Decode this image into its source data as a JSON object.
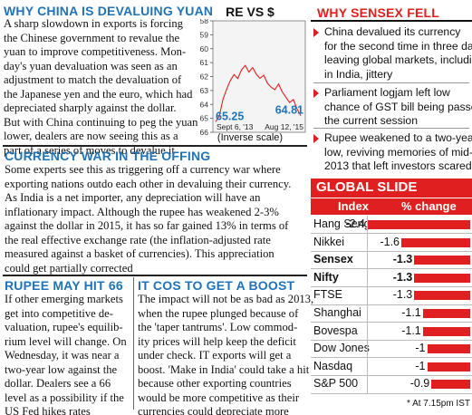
{
  "china": {
    "heading": "WHY CHINA IS DEVALUING YUAN",
    "lines": [
      "A sharp slowdown in exports is forcing",
      "the Chinese government to revalue the",
      "yuan to improve competitiveness. Mon-",
      "day's yuan devaluation was seen as an",
      "adjustment to match the devaluation of",
      "the Japanese yen and the euro, which had",
      "depreciated sharply against the dollar.",
      "But with China continuing to peg the yuan",
      "lower, dealers are now seeing this as a",
      "part of a series of moves to devalue it"
    ]
  },
  "chart": {
    "title": "RE VS $",
    "note": "(Inverse scale)"
  },
  "chart_data": {
    "type": "line",
    "title": "RE VS $",
    "xlabel": "",
    "ylabel": "",
    "ylim": [
      66,
      58
    ],
    "inverse_scale": true,
    "yticks": [
      58,
      59,
      60,
      61,
      62,
      63,
      64,
      65,
      66
    ],
    "x": [
      "Sept 6, '13",
      "Aug 12, '15"
    ],
    "series": [
      {
        "values": [
          65.25,
          64.81
        ]
      }
    ],
    "data_labels": [
      "65.25",
      "64.81"
    ],
    "line_color": "#e02020",
    "grid": false
  },
  "sensex": {
    "heading": "WHY SENSEX FELL",
    "items": [
      {
        "lines": [
          "China devalued its currency",
          "for the second time in three days,",
          "leaving global markets, including",
          "in India, jittery"
        ]
      },
      {
        "lines": [
          "Parliament logjam left low",
          "chance of GST bill being passed in",
          "the current session"
        ]
      },
      {
        "lines": [
          "Rupee weakened to a two-year",
          "low, reviving memories of mid-",
          "2013 that left investors scared"
        ]
      }
    ]
  },
  "currency": {
    "heading": "CURRENCY WAR IN THE OFFING",
    "lines": [
      "Some experts see this as triggering off a currency war where",
      "exporting nations outdo each other in devaluing their currency.",
      "As India is a net importer, any depreciation will have an",
      "inflationary impact. Although the rupee has weakened 2-3%",
      "against the dollar in 2015, it has so far gained 13% in terms of",
      "the real effective exchange rate (the inflation-adjusted rate",
      "measured against a basket of currencies). This appreciation",
      "could get partially corrected"
    ]
  },
  "rupee": {
    "heading": "RUPEE MAY HIT 66",
    "lines": [
      "If other emerging markets",
      "get into competitive de-",
      "valuation, rupee's equilib-",
      "rium level will change. On",
      "Wednesday, it was near a",
      "two-year low against the",
      "dollar. Dealers see a 66",
      "level as a possibility if the",
      "US Fed hikes rates"
    ]
  },
  "itcos": {
    "heading": "IT COS TO GET A BOOST",
    "lines": [
      "The impact will not be as bad as 2013,",
      "when the rupee plunged because of",
      "the 'taper tantrums'. Low commod-",
      "ity prices will help keep the deficit",
      "under check. IT exports will get a",
      "boost. 'Make in India' could take a hit",
      "because other exporting countries",
      "would be more competitive as their",
      "currencies could depreciate more"
    ]
  },
  "global": {
    "heading": "GLOBAL SLIDE",
    "col_index": "Index",
    "col_change": "% change",
    "rows": [
      {
        "name": "Hang Seng",
        "value": -2.4,
        "label": "-2.4",
        "bold": false
      },
      {
        "name": "Nikkei",
        "value": -1.6,
        "label": "-1.6",
        "bold": false
      },
      {
        "name": "Sensex",
        "value": -1.3,
        "label": "-1.3",
        "bold": true
      },
      {
        "name": "Nifty",
        "value": -1.3,
        "label": "-1.3",
        "bold": true
      },
      {
        "name": "FTSE",
        "value": -1.3,
        "label": "-1.3",
        "bold": false
      },
      {
        "name": "Shanghai",
        "value": -1.1,
        "label": "-1.1",
        "bold": false
      },
      {
        "name": "Bovespa",
        "value": -1.1,
        "label": "-1.1",
        "bold": false
      },
      {
        "name": "Dow Jones",
        "value": -1,
        "label": "-1",
        "bold": false
      },
      {
        "name": "Nasdaq",
        "value": -1,
        "label": "-1",
        "bold": false
      },
      {
        "name": "S&P 500",
        "value": -0.9,
        "label": "-0.9",
        "bold": false
      }
    ],
    "footnote": "* At 7.15pm IST",
    "bar_color": "#e02020"
  }
}
